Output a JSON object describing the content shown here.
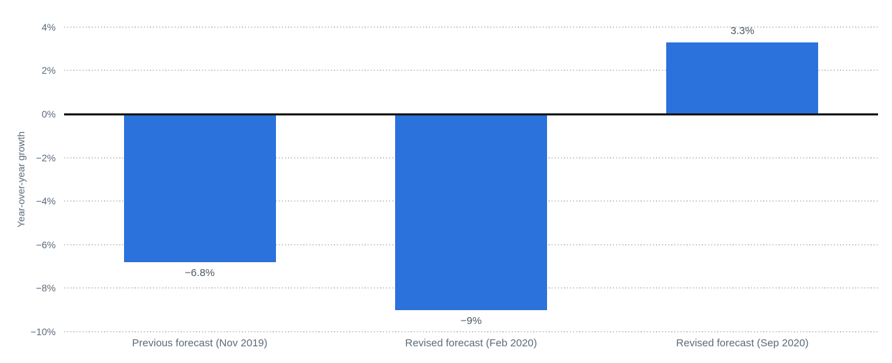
{
  "chart_data": {
    "type": "bar",
    "title": "",
    "xlabel": "",
    "ylabel": "Year-over-year growth",
    "categories": [
      "Previous forecast (Nov 2019)",
      "Revised forecast (Feb 2020)",
      "Revised forecast (Sep 2020)"
    ],
    "values": [
      -6.8,
      -9,
      3.3
    ],
    "value_labels": [
      "−6.8%",
      "−9%",
      "3.3%"
    ],
    "ylim": [
      -10,
      4
    ],
    "ytick_step": 2,
    "ytick_labels": [
      "4%",
      "2%",
      "0%",
      "−2%",
      "−4%",
      "−6%",
      "−8%",
      "−10%"
    ],
    "grid": "horizontal-dotted",
    "legend": "none",
    "zero_baseline": true
  },
  "colors": {
    "bar": "#2b72dc",
    "axis_text": "#5b6a7a",
    "value_text": "#4d5761",
    "gridline": "#c7cacd",
    "zero_line": "#141414",
    "background": "#ffffff"
  }
}
